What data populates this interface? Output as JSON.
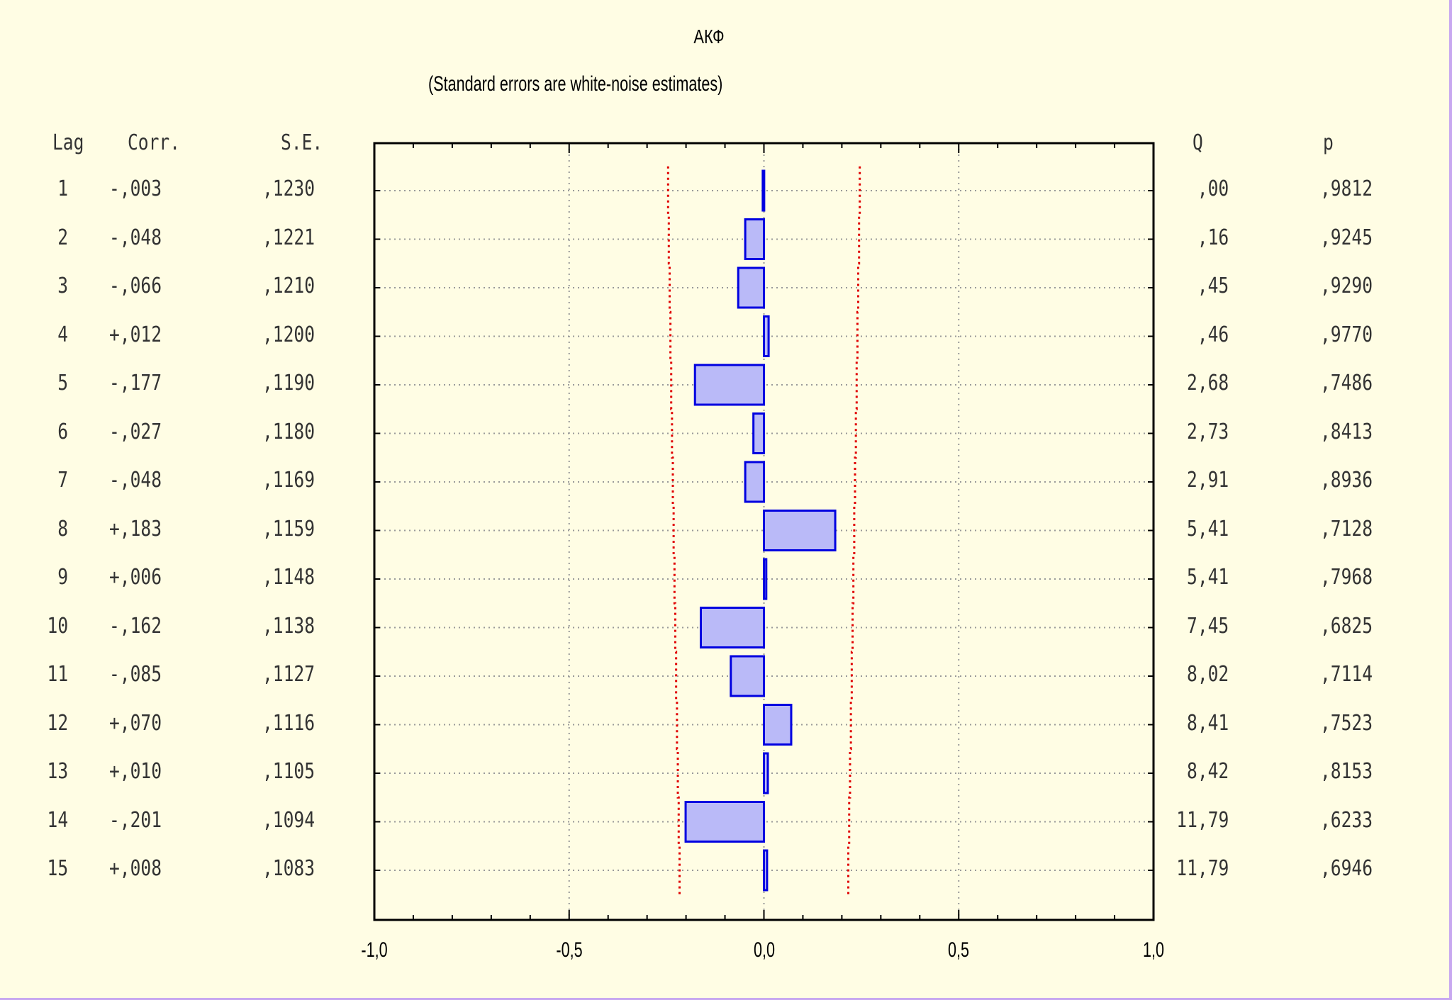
{
  "chart_data": {
    "type": "bar",
    "orientation": "horizontal",
    "title": "АКФ",
    "subtitle": "(Standard errors are white-noise estimates)",
    "columns": {
      "lag": "Lag",
      "corr": "Corr.",
      "se": "S.E.",
      "q": "Q",
      "p": "p"
    },
    "xlim": [
      -1.0,
      1.0
    ],
    "x_ticks": [
      -1.0,
      -0.5,
      0.0,
      0.5,
      1.0
    ],
    "x_tick_labels": [
      "-1,0",
      "-0,5",
      "0,0",
      "0,5",
      "1,0"
    ],
    "grid": true,
    "confidence_limits": true,
    "rows": [
      {
        "lag": "1",
        "corr_label": "-,003",
        "corr": -0.003,
        "se_label": ",1230",
        "se": 0.123,
        "q_label": ",00",
        "p_label": ",9812"
      },
      {
        "lag": "2",
        "corr_label": "-,048",
        "corr": -0.048,
        "se_label": ",1221",
        "se": 0.1221,
        "q_label": ",16",
        "p_label": ",9245"
      },
      {
        "lag": "3",
        "corr_label": "-,066",
        "corr": -0.066,
        "se_label": ",1210",
        "se": 0.121,
        "q_label": ",45",
        "p_label": ",9290"
      },
      {
        "lag": "4",
        "corr_label": "+,012",
        "corr": 0.012,
        "se_label": ",1200",
        "se": 0.12,
        "q_label": ",46",
        "p_label": ",9770"
      },
      {
        "lag": "5",
        "corr_label": "-,177",
        "corr": -0.177,
        "se_label": ",1190",
        "se": 0.119,
        "q_label": "2,68",
        "p_label": ",7486"
      },
      {
        "lag": "6",
        "corr_label": "-,027",
        "corr": -0.027,
        "se_label": ",1180",
        "se": 0.118,
        "q_label": "2,73",
        "p_label": ",8413"
      },
      {
        "lag": "7",
        "corr_label": "-,048",
        "corr": -0.048,
        "se_label": ",1169",
        "se": 0.1169,
        "q_label": "2,91",
        "p_label": ",8936"
      },
      {
        "lag": "8",
        "corr_label": "+,183",
        "corr": 0.183,
        "se_label": ",1159",
        "se": 0.1159,
        "q_label": "5,41",
        "p_label": ",7128"
      },
      {
        "lag": "9",
        "corr_label": "+,006",
        "corr": 0.006,
        "se_label": ",1148",
        "se": 0.1148,
        "q_label": "5,41",
        "p_label": ",7968"
      },
      {
        "lag": "10",
        "corr_label": "-,162",
        "corr": -0.162,
        "se_label": ",1138",
        "se": 0.1138,
        "q_label": "7,45",
        "p_label": ",6825"
      },
      {
        "lag": "11",
        "corr_label": "-,085",
        "corr": -0.085,
        "se_label": ",1127",
        "se": 0.1127,
        "q_label": "8,02",
        "p_label": ",7114"
      },
      {
        "lag": "12",
        "corr_label": "+,070",
        "corr": 0.07,
        "se_label": ",1116",
        "se": 0.1116,
        "q_label": "8,41",
        "p_label": ",7523"
      },
      {
        "lag": "13",
        "corr_label": "+,010",
        "corr": 0.01,
        "se_label": ",1105",
        "se": 0.1105,
        "q_label": "8,42",
        "p_label": ",8153"
      },
      {
        "lag": "14",
        "corr_label": "-,201",
        "corr": -0.201,
        "se_label": ",1094",
        "se": 0.1094,
        "q_label": "11,79",
        "p_label": ",6233"
      },
      {
        "lag": "15",
        "corr_label": "+,008",
        "corr": 0.008,
        "se_label": ",1083",
        "se": 0.1083,
        "q_label": "11,79",
        "p_label": ",6946"
      }
    ]
  },
  "colors": {
    "background": "#fffde4",
    "bar_fill": "#babaf8",
    "bar_stroke": "#0000e0",
    "confidence_line": "#e00000",
    "grid": "#999999",
    "axis": "#000000"
  }
}
